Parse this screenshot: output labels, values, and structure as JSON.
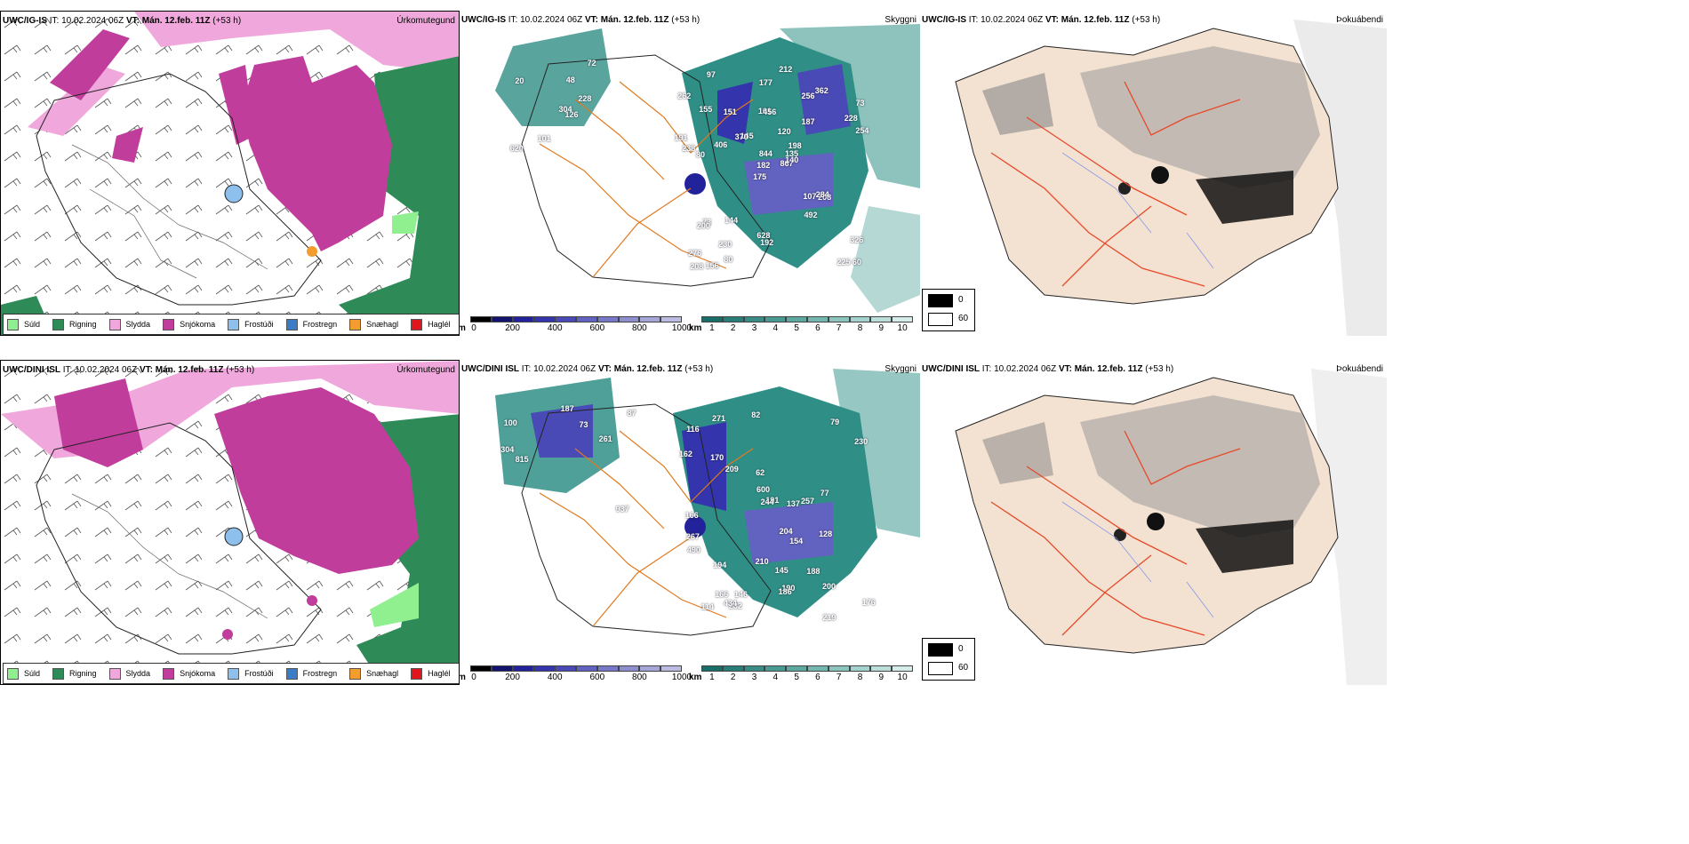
{
  "rows": [
    {
      "model": "UWC/IG-IS",
      "it_label": "IT:",
      "it_value": "10.02.2024 06Z",
      "vt_label": "VT:",
      "vt_value": "Mán. 12.feb. 11Z",
      "lead": "(+53 h)",
      "precip_type_title": "Úrkomutegund",
      "visibility_title": "Skyggni",
      "fog_title": "Þokuábendi",
      "numbers": [
        "126",
        "20",
        "304",
        "620",
        "228",
        "101",
        "72",
        "48",
        "256",
        "867",
        "97",
        "60",
        "80",
        "73",
        "175",
        "187",
        "156",
        "161",
        "120",
        "73",
        "145",
        "276",
        "230",
        "456",
        "198",
        "208",
        "155",
        "177",
        "238",
        "107",
        "254",
        "182",
        "628",
        "844",
        "151",
        "362",
        "144",
        "225",
        "326",
        "284",
        "212",
        "370",
        "406",
        "492",
        "80",
        "191",
        "135",
        "208",
        "192",
        "140",
        "200",
        "228",
        "262"
      ]
    },
    {
      "model": "UWC/DINI ISL",
      "it_label": "IT:",
      "it_value": "10.02.2024 06Z",
      "vt_label": "VT:",
      "vt_value": "Mán. 12.feb. 11Z",
      "lead": "(+53 h)",
      "precip_type_title": "Úrkomutegund",
      "visibility_title": "Skyggni",
      "fog_title": "Þokuábendi",
      "numbers": [
        "304",
        "187",
        "261",
        "87",
        "100",
        "937",
        "815",
        "73",
        "62",
        "79",
        "191",
        "128",
        "82",
        "162",
        "170",
        "194",
        "190",
        "166",
        "204",
        "210",
        "188",
        "200",
        "230",
        "600",
        "166",
        "244",
        "154",
        "271",
        "232",
        "186",
        "267",
        "219",
        "137",
        "114",
        "434",
        "490",
        "77",
        "116",
        "146",
        "209",
        "145",
        "257",
        "176"
      ]
    }
  ],
  "precip_legend": [
    {
      "label": "Súld",
      "color": "#90f090"
    },
    {
      "label": "Rigning",
      "color": "#2e8b57"
    },
    {
      "label": "Slydda",
      "color": "#f0a8dc"
    },
    {
      "label": "Snjókoma",
      "color": "#c13d9c"
    },
    {
      "label": "Frostúði",
      "color": "#8ec0ee"
    },
    {
      "label": "Frostregn",
      "color": "#3a7cc6"
    },
    {
      "label": "Snæhagl",
      "color": "#f29d2e"
    },
    {
      "label": "Haglél",
      "color": "#e0161c"
    }
  ],
  "vis_m_bar": {
    "unit": "m",
    "ticks": [
      "0",
      "200",
      "400",
      "600",
      "800",
      "1000"
    ],
    "colors": [
      "#000000",
      "#14146e",
      "#22229a",
      "#3434ac",
      "#4a4ab6",
      "#6262c0",
      "#7878c8",
      "#8f8fd0",
      "#a6a6d8",
      "#bcbce2"
    ]
  },
  "vis_km_bar": {
    "unit": "km",
    "ticks": [
      "1",
      "2",
      "3",
      "4",
      "5",
      "6",
      "7",
      "8",
      "9",
      "10"
    ],
    "colors": [
      "#1a6e68",
      "#2a7e78",
      "#3a8c86",
      "#4a9a94",
      "#5ea8a2",
      "#74b6b0",
      "#8cc4be",
      "#a4d2cc",
      "#bcdeda",
      "#d6ece9"
    ]
  },
  "fog_legend": [
    {
      "label": "0",
      "color": "#000000"
    },
    {
      "label": "60",
      "color": "#ffffff"
    }
  ],
  "colors": {
    "snow": "#c13d9c",
    "sleet": "#f0a8dc",
    "rain": "#2e8b57",
    "drizzle": "#90f090",
    "vis_teal": "#2f8f86",
    "vis_blue": "#3434ac",
    "roads": "#e07a1e",
    "fog_land": "#f3e2d2",
    "fog_roads": "#e64a2a"
  }
}
